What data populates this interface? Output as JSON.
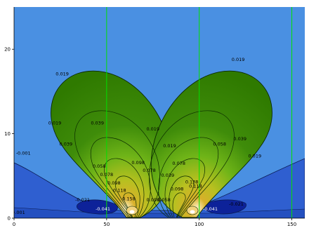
{
  "chart_data": {
    "type": "contour",
    "xlim": [
      0,
      157
    ],
    "ylim": [
      0,
      25
    ],
    "x_ticks": [
      0,
      50,
      100,
      150
    ],
    "y_ticks": [
      0,
      10,
      20
    ],
    "vertical_lines_x": [
      50,
      100,
      150
    ],
    "colors": {
      "background": "#4a90e2",
      "line": "#00e000",
      "pos_outer": "#2f7a00",
      "neg": "#2750c8",
      "neg_deep": "#0b1f96"
    },
    "levels_positive": [
      "0.019",
      "0.039",
      "0.058",
      "0.078",
      "0.098",
      "0.118",
      "0.138",
      "0.158"
    ],
    "levels_negative": [
      "-0.001",
      "-0.021",
      "-0.041"
    ],
    "lobes": [
      {
        "name": "left-lobe",
        "base_x": 63,
        "top_x": 37,
        "top_y": 16.6
      },
      {
        "name": "right-lobe",
        "base_x": 96,
        "top_x": 122,
        "top_y": 16.6
      }
    ],
    "contour_labels": [
      {
        "text": "0.019",
        "x": 26,
        "y": 16.9
      },
      {
        "text": "0.019",
        "x": 121,
        "y": 18.6
      },
      {
        "text": "0.019",
        "x": 22,
        "y": 11.1
      },
      {
        "text": "0.039",
        "x": 45,
        "y": 11.1
      },
      {
        "text": "0.019",
        "x": 75,
        "y": 10.4
      },
      {
        "text": "0.039",
        "x": 122,
        "y": 9.2
      },
      {
        "text": "0.039",
        "x": 28,
        "y": 8.6
      },
      {
        "text": "0.058",
        "x": 111,
        "y": 8.6
      },
      {
        "text": "0.019",
        "x": 84,
        "y": 8.4
      },
      {
        "text": "0.019",
        "x": 130,
        "y": 7.2
      },
      {
        "text": "-0.001",
        "x": 5,
        "y": 7.5
      },
      {
        "text": "0.098",
        "x": 67,
        "y": 6.4
      },
      {
        "text": "0.078",
        "x": 89,
        "y": 6.3
      },
      {
        "text": "0.078",
        "x": 73,
        "y": 5.5
      },
      {
        "text": "0.058",
        "x": 46,
        "y": 6.0
      },
      {
        "text": "0.078",
        "x": 50,
        "y": 5.0
      },
      {
        "text": "0.039",
        "x": 83,
        "y": 4.9
      },
      {
        "text": "0.098",
        "x": 54,
        "y": 4.0
      },
      {
        "text": "0.138",
        "x": 96,
        "y": 4.1
      },
      {
        "text": "0.118",
        "x": 98,
        "y": 3.6
      },
      {
        "text": "0.118",
        "x": 57,
        "y": 3.1
      },
      {
        "text": "0.098",
        "x": 88,
        "y": 3.3
      },
      {
        "text": "0.158",
        "x": 62,
        "y": 2.1
      },
      {
        "text": "0.098",
        "x": 75,
        "y": 2.0
      },
      {
        "text": "0.058",
        "x": 81,
        "y": 2.0
      },
      {
        "text": "-0.021",
        "x": 37,
        "y": 2.0
      },
      {
        "text": "-0.021",
        "x": 120,
        "y": 1.5
      },
      {
        "text": "-0.041",
        "x": 48,
        "y": 0.9
      },
      {
        "text": "-0.041",
        "x": 106,
        "y": 0.9
      },
      {
        "text": "-0.001",
        "x": 2,
        "y": 0.5
      }
    ]
  }
}
